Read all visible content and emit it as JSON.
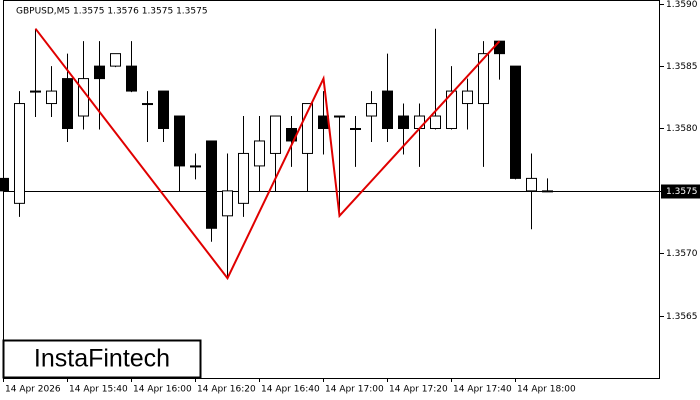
{
  "chart_data": {
    "type": "candlestick",
    "title": "GBPUSD,M5  1.3575 1.3576 1.3575 1.3575",
    "logo": "InstaFintech",
    "categories": [
      "14 Apr 2026",
      null,
      null,
      null,
      "14 Apr 15:40",
      null,
      null,
      null,
      "14 Apr 16:00",
      null,
      null,
      null,
      "14 Apr 16:20",
      null,
      null,
      null,
      "14 Apr 16:40",
      null,
      null,
      null,
      "14 Apr 17:00",
      null,
      null,
      null,
      "14 Apr 17:20",
      null,
      null,
      null,
      "14 Apr 17:40",
      null,
      null,
      null,
      "14 Apr 18:00",
      null,
      null
    ],
    "open": [
      1.3576,
      1.3574,
      1.3583,
      1.3582,
      1.3584,
      1.3581,
      1.3585,
      1.3585,
      1.3585,
      1.3582,
      1.3583,
      1.3581,
      1.3577,
      1.3579,
      1.3573,
      1.3574,
      1.3577,
      1.3578,
      1.358,
      1.3578,
      1.3581,
      1.3581,
      1.358,
      1.3581,
      1.3583,
      1.3581,
      1.358,
      1.358,
      1.358,
      1.3582,
      1.3582,
      1.3587,
      1.3585,
      1.3575,
      1.3575
    ],
    "high": [
      1.3576,
      1.3583,
      1.3588,
      1.3585,
      1.3586,
      1.3587,
      1.3587,
      1.3586,
      1.3587,
      1.3583,
      1.3583,
      1.3581,
      1.3578,
      1.3579,
      1.3578,
      1.3581,
      1.3581,
      1.3581,
      1.3581,
      1.3582,
      1.3583,
      1.3581,
      1.3581,
      1.3583,
      1.3586,
      1.3582,
      1.3582,
      1.3588,
      1.3585,
      1.3584,
      1.3587,
      1.3587,
      1.3585,
      1.3578,
      1.3576
    ],
    "low": [
      1.3573,
      1.3573,
      1.3581,
      1.3581,
      1.3579,
      1.358,
      1.358,
      1.3585,
      1.3583,
      1.3579,
      1.3579,
      1.3575,
      1.3576,
      1.3571,
      1.3568,
      1.3573,
      1.3575,
      1.3575,
      1.3577,
      1.3575,
      1.3578,
      1.3573,
      1.3577,
      1.3579,
      1.3579,
      1.3578,
      1.3577,
      1.358,
      1.358,
      1.358,
      1.3577,
      1.3584,
      1.3576,
      1.3572,
      1.3575
    ],
    "close": [
      1.3575,
      1.3582,
      1.3583,
      1.3583,
      1.358,
      1.3584,
      1.3584,
      1.3586,
      1.3583,
      1.3582,
      1.358,
      1.3577,
      1.3577,
      1.3572,
      1.3575,
      1.3578,
      1.3579,
      1.3581,
      1.3579,
      1.3582,
      1.358,
      1.3581,
      1.358,
      1.3582,
      1.358,
      1.358,
      1.3581,
      1.3581,
      1.3583,
      1.3583,
      1.3586,
      1.3586,
      1.3576,
      1.3576,
      1.3575
    ],
    "pattern": {
      "color": "#e00000",
      "x": [
        2,
        14,
        20,
        21,
        31
      ],
      "y": [
        1.3588,
        1.3568,
        1.3584,
        1.3573,
        1.3587
      ]
    },
    "price_line": 1.3575,
    "ylim": [
      1.356,
      1.35903
    ],
    "yticks": [
      {
        "value": 1.359,
        "label": "1.3590"
      },
      1.3585,
      {
        "value": 1.358,
        "label": "1.3580"
      },
      1.3575,
      {
        "value": 1.357,
        "label": "1.3570"
      },
      1.3565
    ]
  }
}
